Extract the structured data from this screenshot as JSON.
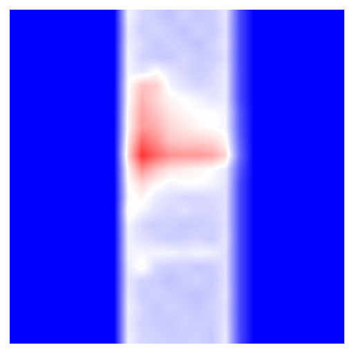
{
  "chart_data": {
    "type": "heatmap",
    "tick_labels": false,
    "colors": [
      "#0000ff",
      "#ffffff",
      "#ff0000"
    ],
    "color_range": [
      0,
      1
    ],
    "cells": [
      [
        0,
        0,
        0,
        0,
        0,
        0,
        0,
        0,
        0.48,
        0.42,
        0.4,
        0.38,
        0.41,
        0.39,
        0.4,
        0.45,
        0.15,
        0,
        0,
        0,
        0,
        0,
        0,
        0
      ],
      [
        0,
        0,
        0,
        0,
        0,
        0,
        0,
        0,
        0.46,
        0.4,
        0.42,
        0.4,
        0.38,
        0.41,
        0.39,
        0.44,
        0.15,
        0,
        0,
        0,
        0,
        0,
        0,
        0
      ],
      [
        0,
        0,
        0,
        0,
        0,
        0,
        0,
        0,
        0.47,
        0.43,
        0.39,
        0.41,
        0.4,
        0.38,
        0.41,
        0.45,
        0.15,
        0,
        0,
        0,
        0,
        0,
        0,
        0
      ],
      [
        0,
        0,
        0,
        0,
        0,
        0,
        0,
        0,
        0.48,
        0.41,
        0.4,
        0.39,
        0.42,
        0.4,
        0.4,
        0.44,
        0.15,
        0,
        0,
        0,
        0,
        0,
        0,
        0
      ],
      [
        0,
        0,
        0,
        0,
        0,
        0,
        0,
        0,
        0.48,
        0.45,
        0.5,
        0.45,
        0.42,
        0.4,
        0.42,
        0.46,
        0.15,
        0,
        0,
        0,
        0,
        0,
        0,
        0
      ],
      [
        0,
        0,
        0,
        0,
        0,
        0,
        0,
        0,
        0.5,
        0.62,
        0.6,
        0.48,
        0.44,
        0.42,
        0.43,
        0.46,
        0.15,
        0,
        0,
        0,
        0,
        0,
        0,
        0
      ],
      [
        0,
        0,
        0,
        0,
        0,
        0,
        0,
        0,
        0.5,
        0.65,
        0.58,
        0.52,
        0.5,
        0.48,
        0.45,
        0.46,
        0.15,
        0,
        0,
        0,
        0,
        0,
        0,
        0
      ],
      [
        0,
        0,
        0,
        0,
        0,
        0,
        0,
        0,
        0.52,
        0.68,
        0.62,
        0.55,
        0.52,
        0.5,
        0.5,
        0.48,
        0.18,
        0,
        0,
        0,
        0,
        0,
        0,
        0
      ],
      [
        0,
        0,
        0,
        0,
        0,
        0,
        0,
        0,
        0.52,
        0.7,
        0.66,
        0.58,
        0.55,
        0.52,
        0.5,
        0.48,
        0.18,
        0,
        0,
        0,
        0,
        0,
        0,
        0
      ],
      [
        0,
        0,
        0,
        0,
        0,
        0,
        0,
        0,
        0.55,
        0.8,
        0.72,
        0.62,
        0.6,
        0.6,
        0.58,
        0.52,
        0.2,
        0,
        0,
        0,
        0,
        0,
        0,
        0
      ],
      [
        0,
        0,
        0,
        0,
        0,
        0,
        0,
        0,
        0.58,
        0.9,
        0.8,
        0.72,
        0.7,
        0.7,
        0.68,
        0.58,
        0.22,
        0,
        0,
        0,
        0,
        0,
        0,
        0
      ],
      [
        0,
        0,
        0,
        0,
        0,
        0,
        0,
        0,
        0.52,
        0.72,
        0.62,
        0.56,
        0.54,
        0.52,
        0.5,
        0.46,
        0.18,
        0,
        0,
        0,
        0,
        0,
        0,
        0
      ],
      [
        0,
        0,
        0,
        0,
        0,
        0,
        0,
        0,
        0.5,
        0.58,
        0.52,
        0.48,
        0.5,
        0.5,
        0.48,
        0.45,
        0.15,
        0,
        0,
        0,
        0,
        0,
        0,
        0
      ],
      [
        0,
        0,
        0,
        0,
        0,
        0,
        0,
        0,
        0.48,
        0.52,
        0.46,
        0.44,
        0.42,
        0.42,
        0.43,
        0.44,
        0.15,
        0,
        0,
        0,
        0,
        0,
        0,
        0
      ],
      [
        0,
        0,
        0,
        0,
        0,
        0,
        0,
        0,
        0.52,
        0.48,
        0.44,
        0.42,
        0.44,
        0.42,
        0.42,
        0.44,
        0.15,
        0,
        0,
        0,
        0,
        0,
        0,
        0
      ],
      [
        0,
        0,
        0,
        0,
        0,
        0,
        0,
        0,
        0.48,
        0.42,
        0.4,
        0.41,
        0.39,
        0.4,
        0.41,
        0.44,
        0.15,
        0,
        0,
        0,
        0,
        0,
        0,
        0
      ],
      [
        0,
        0,
        0,
        0,
        0,
        0,
        0,
        0,
        0.47,
        0.44,
        0.42,
        0.4,
        0.41,
        0.42,
        0.4,
        0.45,
        0.15,
        0,
        0,
        0,
        0,
        0,
        0,
        0
      ],
      [
        0,
        0,
        0,
        0,
        0,
        0,
        0,
        0,
        0.48,
        0.48,
        0.48,
        0.48,
        0.46,
        0.48,
        0.47,
        0.44,
        0.15,
        0,
        0,
        0,
        0,
        0,
        0,
        0
      ],
      [
        0,
        0,
        0,
        0,
        0,
        0,
        0,
        0,
        0.46,
        0.52,
        0.42,
        0.4,
        0.41,
        0.39,
        0.4,
        0.44,
        0.15,
        0,
        0,
        0,
        0,
        0,
        0,
        0
      ],
      [
        0,
        0,
        0,
        0,
        0,
        0,
        0,
        0,
        0.45,
        0.41,
        0.4,
        0.38,
        0.4,
        0.41,
        0.39,
        0.44,
        0.15,
        0,
        0,
        0,
        0,
        0,
        0,
        0
      ],
      [
        0,
        0,
        0,
        0,
        0,
        0,
        0,
        0,
        0.46,
        0.4,
        0.41,
        0.4,
        0.39,
        0.38,
        0.4,
        0.45,
        0.15,
        0,
        0,
        0,
        0,
        0,
        0,
        0
      ],
      [
        0,
        0,
        0,
        0,
        0,
        0,
        0,
        0,
        0.47,
        0.42,
        0.39,
        0.41,
        0.4,
        0.39,
        0.41,
        0.44,
        0.15,
        0,
        0,
        0,
        0,
        0,
        0,
        0
      ],
      [
        0,
        0,
        0,
        0,
        0,
        0,
        0,
        0,
        0.46,
        0.41,
        0.4,
        0.39,
        0.41,
        0.4,
        0.4,
        0.45,
        0.15,
        0,
        0,
        0,
        0,
        0,
        0,
        0
      ],
      [
        0,
        0,
        0,
        0,
        0,
        0,
        0,
        0,
        0.47,
        0.42,
        0.41,
        0.4,
        0.4,
        0.41,
        0.39,
        0.46,
        0.15,
        0,
        0,
        0,
        0,
        0,
        0,
        0
      ]
    ]
  }
}
